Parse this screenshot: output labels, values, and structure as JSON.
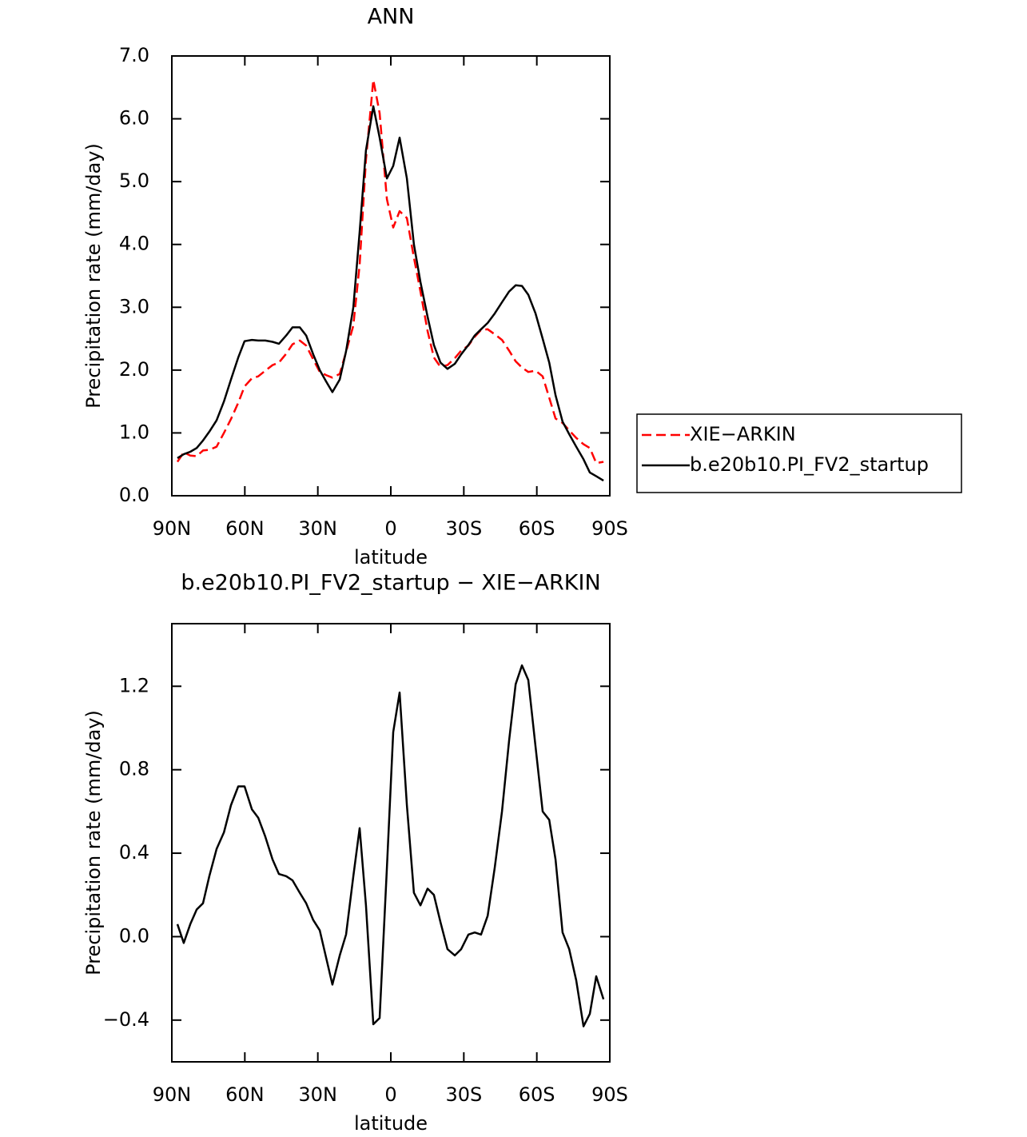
{
  "chart_data": [
    {
      "type": "line",
      "title": "ANN",
      "x_label": "latitude",
      "y_label": "Precipitation rate (mm/day)",
      "x": [
        87.7,
        85.1,
        82.4,
        79.8,
        77.2,
        74.6,
        71.6,
        68.6,
        65.7,
        62.7,
        60.1,
        57.1,
        54.5,
        51.6,
        48.6,
        46.0,
        43.0,
        40.4,
        37.4,
        34.8,
        31.9,
        29.2,
        26.6,
        24.0,
        21.0,
        18.4,
        15.4,
        12.8,
        10.2,
        7.2,
        4.6,
        1.6,
        -1.0,
        -3.6,
        -6.6,
        -9.5,
        -12.2,
        -15.1,
        -17.7,
        -20.4,
        -23.3,
        -26.3,
        -28.9,
        -31.9,
        -34.5,
        -37.1,
        -39.8,
        -42.7,
        -45.7,
        -48.6,
        -51.3,
        -53.9,
        -56.5,
        -59.5,
        -62.4,
        -65.1,
        -67.7,
        -70.6,
        -73.3,
        -76.2,
        -79.2,
        -81.8,
        -84.4,
        -87.4
      ],
      "series": [
        {
          "name": "XIE−ARKIN",
          "color": "#ff0000",
          "line_style": "dashed",
          "values": [
            0.54,
            0.69,
            0.64,
            0.63,
            0.72,
            0.73,
            0.78,
            1.0,
            1.22,
            1.48,
            1.74,
            1.87,
            1.9,
            1.99,
            2.08,
            2.12,
            2.26,
            2.41,
            2.47,
            2.39,
            2.17,
            1.97,
            1.92,
            1.88,
            1.94,
            2.29,
            2.71,
            3.68,
            5.35,
            6.62,
            6.09,
            4.72,
            4.27,
            4.53,
            4.42,
            3.79,
            3.25,
            2.62,
            2.2,
            2.05,
            2.08,
            2.19,
            2.31,
            2.39,
            2.53,
            2.64,
            2.65,
            2.57,
            2.48,
            2.31,
            2.14,
            2.04,
            1.97,
            1.99,
            1.9,
            1.56,
            1.23,
            1.16,
            1.04,
            0.92,
            0.82,
            0.76,
            0.52,
            0.54
          ]
        },
        {
          "name": "b.e20b10.PI_FV2_startup",
          "color": "#000000",
          "line_style": "solid",
          "values": [
            0.6,
            0.66,
            0.7,
            0.76,
            0.88,
            1.02,
            1.2,
            1.5,
            1.85,
            2.2,
            2.46,
            2.48,
            2.47,
            2.47,
            2.45,
            2.42,
            2.55,
            2.68,
            2.68,
            2.55,
            2.25,
            2.0,
            1.82,
            1.65,
            1.85,
            2.3,
            3.0,
            4.2,
            5.5,
            6.2,
            5.7,
            5.05,
            5.25,
            5.7,
            5.05,
            4.0,
            3.4,
            2.85,
            2.4,
            2.12,
            2.02,
            2.1,
            2.25,
            2.4,
            2.55,
            2.65,
            2.75,
            2.9,
            3.08,
            3.25,
            3.35,
            3.34,
            3.2,
            2.9,
            2.5,
            2.12,
            1.6,
            1.18,
            0.98,
            0.78,
            0.58,
            0.37,
            0.31,
            0.24
          ]
        }
      ],
      "xlim": [
        90,
        -90
      ],
      "xticks": [
        {
          "value": 90,
          "label": "90N"
        },
        {
          "value": 60,
          "label": "60N"
        },
        {
          "value": 30,
          "label": "30N"
        },
        0,
        {
          "value": -30,
          "label": "30S"
        },
        {
          "value": -60,
          "label": "60S"
        },
        {
          "value": -90,
          "label": "90S"
        }
      ],
      "ylim": [
        0,
        7
      ],
      "yticks": [
        {
          "value": 0,
          "label": "0.0"
        },
        {
          "value": 1,
          "label": "1.0"
        },
        {
          "value": 2,
          "label": "2.0"
        },
        {
          "value": 3,
          "label": "3.0"
        },
        {
          "value": 4,
          "label": "4.0"
        },
        {
          "value": 5,
          "label": "5.0"
        },
        {
          "value": 6,
          "label": "6.0"
        },
        {
          "value": 7,
          "label": "7.0"
        }
      ],
      "legend": "right"
    },
    {
      "type": "line",
      "title": "b.e20b10.PI_FV2_startup − XIE−ARKIN",
      "x_label": "latitude",
      "y_label": "Precipitation rate (mm/day)",
      "x": [
        87.7,
        85.1,
        82.4,
        79.8,
        77.2,
        74.6,
        71.6,
        68.6,
        65.7,
        62.7,
        60.1,
        57.1,
        54.5,
        51.6,
        48.6,
        46.0,
        43.0,
        40.4,
        37.4,
        34.8,
        31.9,
        29.2,
        26.6,
        24.0,
        21.0,
        18.4,
        15.4,
        12.8,
        10.2,
        7.2,
        4.6,
        1.6,
        -1.0,
        -3.6,
        -6.6,
        -9.5,
        -12.2,
        -15.1,
        -17.7,
        -20.4,
        -23.3,
        -26.3,
        -28.9,
        -31.9,
        -34.5,
        -37.1,
        -39.8,
        -42.7,
        -45.7,
        -48.6,
        -51.3,
        -53.9,
        -56.5,
        -59.5,
        -62.4,
        -65.1,
        -67.7,
        -70.6,
        -73.3,
        -76.2,
        -79.2,
        -81.8,
        -84.4,
        -87.4
      ],
      "values": [
        0.06,
        -0.03,
        0.06,
        0.13,
        0.16,
        0.29,
        0.42,
        0.5,
        0.63,
        0.72,
        0.72,
        0.61,
        0.57,
        0.48,
        0.37,
        0.3,
        0.29,
        0.27,
        0.21,
        0.16,
        0.08,
        0.03,
        -0.1,
        -0.23,
        -0.09,
        0.01,
        0.29,
        0.52,
        0.15,
        -0.42,
        -0.39,
        0.33,
        0.98,
        1.17,
        0.63,
        0.21,
        0.15,
        0.23,
        0.2,
        0.07,
        -0.06,
        -0.09,
        -0.06,
        0.01,
        0.02,
        0.01,
        0.1,
        0.33,
        0.6,
        0.94,
        1.21,
        1.3,
        1.23,
        0.91,
        0.6,
        0.56,
        0.37,
        0.02,
        -0.06,
        -0.21,
        -0.43,
        -0.37,
        -0.19,
        -0.3
      ],
      "color": "#000000",
      "xlim": [
        90,
        -90
      ],
      "xticks": [
        {
          "value": 90,
          "label": "90N"
        },
        {
          "value": 60,
          "label": "60N"
        },
        {
          "value": 30,
          "label": "30N"
        },
        0,
        {
          "value": -30,
          "label": "30S"
        },
        {
          "value": -60,
          "label": "60S"
        },
        {
          "value": -90,
          "label": "90S"
        }
      ],
      "ylim": [
        -0.6,
        1.5
      ],
      "yticks": [
        {
          "value": -0.4,
          "label": "−0.4"
        },
        {
          "value": 0,
          "label": "0.0"
        },
        0.4,
        0.8,
        1.2
      ]
    }
  ]
}
